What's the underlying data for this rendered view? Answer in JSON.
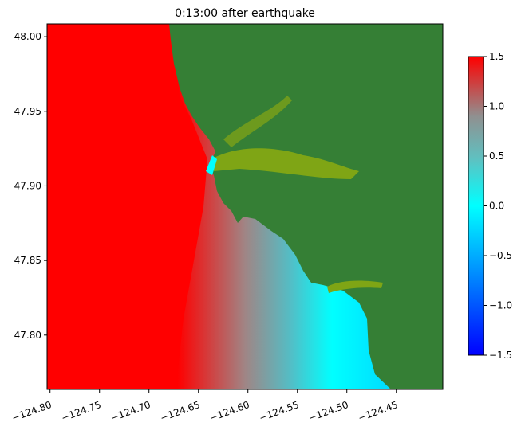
{
  "chart_data": {
    "type": "map",
    "title": "0:13:00 after earthquake",
    "xlim": [
      -124.803,
      -124.403
    ],
    "ylim": [
      47.7636,
      48.0086
    ],
    "xticks": [
      {
        "value": -124.8,
        "label": "−124.80"
      },
      {
        "value": -124.75,
        "label": "−124.75"
      },
      {
        "value": -124.7,
        "label": "−124.70"
      },
      {
        "value": -124.65,
        "label": "−124.65"
      },
      {
        "value": -124.6,
        "label": "−124.60"
      },
      {
        "value": -124.55,
        "label": "−124.55"
      },
      {
        "value": -124.5,
        "label": "−124.50"
      },
      {
        "value": -124.45,
        "label": "−124.45"
      }
    ],
    "yticks": [
      {
        "value": 47.8,
        "label": "47.80"
      },
      47.85,
      {
        "value": 47.9,
        "label": "47.90"
      },
      47.95,
      {
        "value": 48,
        "label": "48.00"
      }
    ],
    "colorbar": {
      "lim": [
        -1.5,
        1.5
      ],
      "ticks": [
        {
          "value": -1.5,
          "label": "−1.5"
        },
        {
          "value": -1,
          "label": "−1.0"
        },
        {
          "value": -0.5,
          "label": "−0.5"
        },
        {
          "value": 0,
          "label": "0.0"
        },
        0.5,
        {
          "value": 1,
          "label": "1.0"
        },
        1.5
      ]
    }
  }
}
